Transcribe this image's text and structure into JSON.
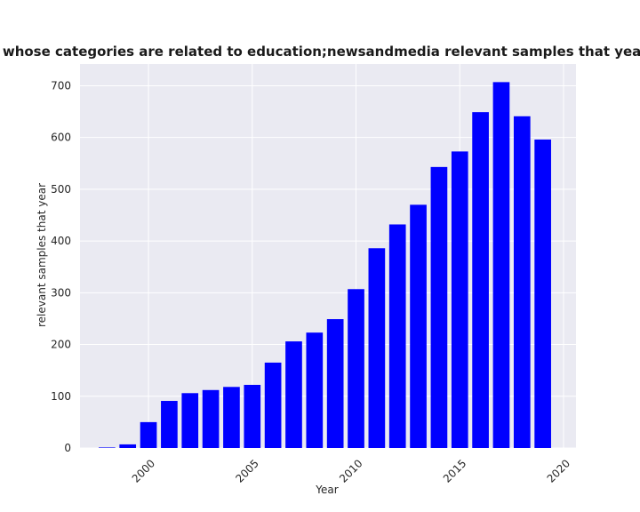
{
  "chart_data": {
    "type": "bar",
    "title": "Number of samples whose categories are related to education;newsandmedia relevant samples that year in privacy policies",
    "xlabel": "Year",
    "ylabel": "relevant samples that year",
    "x": [
      1998,
      1999,
      2000,
      2001,
      2002,
      2003,
      2004,
      2005,
      2006,
      2007,
      2008,
      2009,
      2010,
      2011,
      2012,
      2013,
      2014,
      2015,
      2016,
      2017,
      2018,
      2019
    ],
    "values": [
      1,
      7,
      50,
      91,
      106,
      112,
      118,
      122,
      165,
      206,
      223,
      249,
      307,
      386,
      432,
      470,
      543,
      573,
      649,
      707,
      641,
      596
    ],
    "x_ticks": [
      2000,
      2005,
      2010,
      2015,
      2020
    ],
    "y_ticks": [
      0,
      100,
      200,
      300,
      400,
      500,
      600,
      700
    ],
    "xlim": [
      1996.7,
      2020.6
    ],
    "ylim": [
      0,
      742
    ],
    "bar_color": "#0000ff",
    "background": "#eaeaf2",
    "grid": true,
    "grid_color": "#ffffff"
  }
}
